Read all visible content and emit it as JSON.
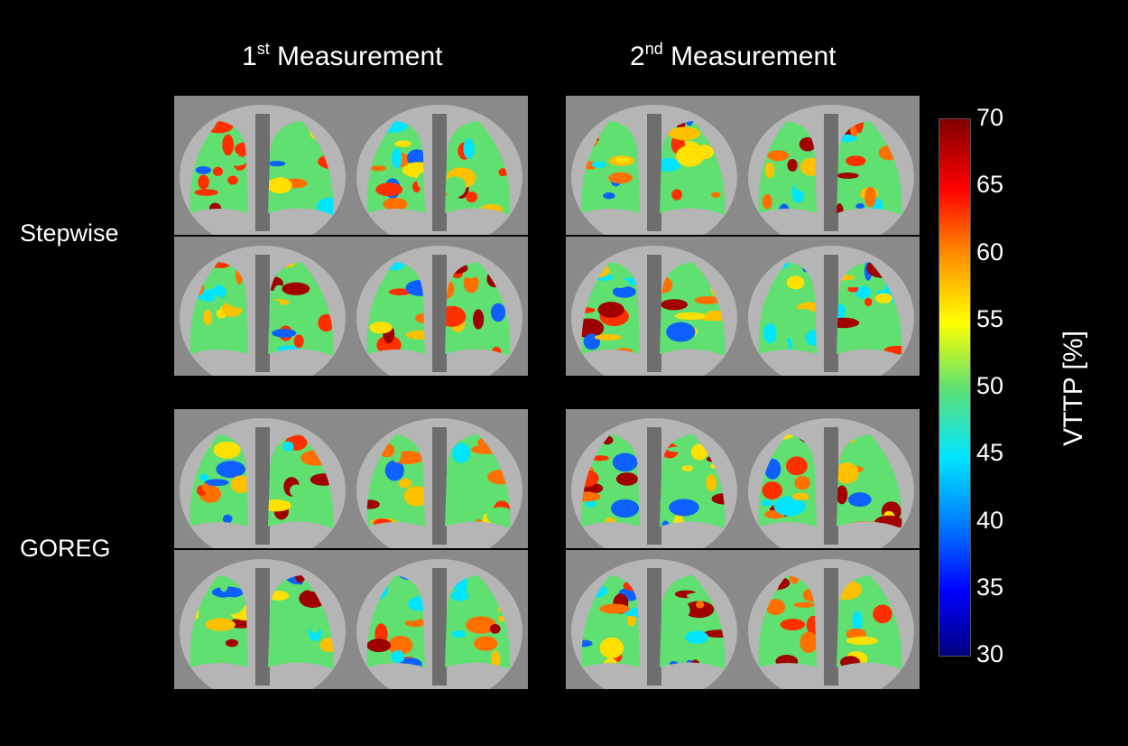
{
  "columns": [
    {
      "label": "Measurement",
      "ordinal_num": "1",
      "ordinal_suffix": "st"
    },
    {
      "label": "Measurement",
      "ordinal_num": "2",
      "ordinal_suffix": "nd"
    }
  ],
  "rows": [
    {
      "label": "Stepwise"
    },
    {
      "label": "GOREG"
    }
  ],
  "colorbar": {
    "label": "VTTP [%]",
    "ticks": [
      "70",
      "65",
      "60",
      "55",
      "50",
      "45",
      "40",
      "35",
      "30"
    ],
    "min": 30,
    "max": 70,
    "colormap": [
      "#000080",
      "#0000ff",
      "#0080ff",
      "#00e5ff",
      "#5fe070",
      "#ffff00",
      "#ff8c00",
      "#ff0000",
      "#800000"
    ]
  },
  "image_description": "Coronal lung MRI slices with VTTP parameter maps overlaid, 2x2 slices per method per measurement"
}
